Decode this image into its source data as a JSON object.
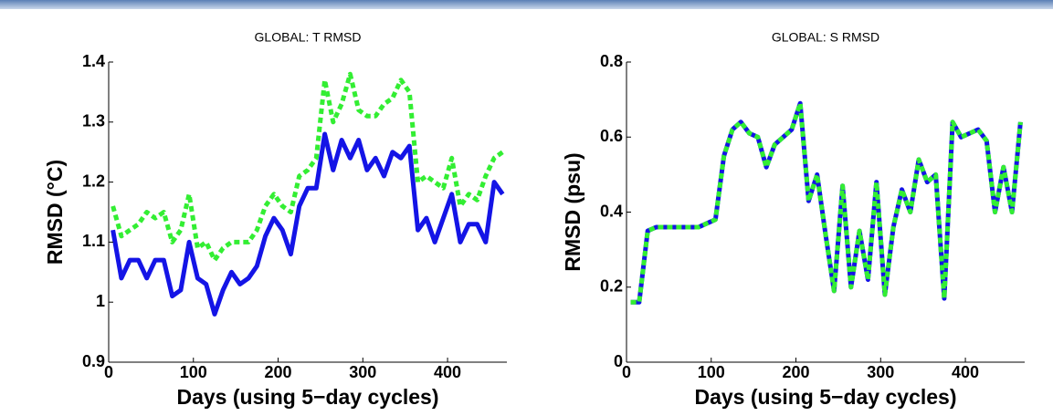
{
  "chart_data": [
    {
      "type": "line",
      "title": "GLOBAL: T RMSD",
      "x_label": "Days (using 5−day cycles)",
      "y_label": "RMSD (°C)",
      "x": [
        5,
        15,
        25,
        35,
        45,
        55,
        65,
        75,
        85,
        95,
        105,
        115,
        125,
        135,
        145,
        155,
        165,
        175,
        185,
        195,
        205,
        215,
        225,
        235,
        245,
        255,
        265,
        275,
        285,
        295,
        305,
        315,
        325,
        335,
        345,
        355,
        365,
        375,
        385,
        395,
        405,
        415,
        425,
        435,
        445,
        455,
        465
      ],
      "series": [
        {
          "color": "#1414e6",
          "line_style": "solid",
          "values": [
            1.12,
            1.04,
            1.07,
            1.07,
            1.04,
            1.07,
            1.07,
            1.01,
            1.02,
            1.1,
            1.04,
            1.03,
            0.98,
            1.02,
            1.05,
            1.03,
            1.04,
            1.06,
            1.11,
            1.14,
            1.12,
            1.08,
            1.16,
            1.19,
            1.19,
            1.28,
            1.22,
            1.27,
            1.24,
            1.27,
            1.22,
            1.24,
            1.21,
            1.25,
            1.24,
            1.26,
            1.12,
            1.14,
            1.1,
            1.14,
            1.18,
            1.1,
            1.13,
            1.13,
            1.1,
            1.2,
            1.18
          ]
        },
        {
          "color": "#33ee33",
          "line_style": "dotted",
          "values": [
            1.16,
            1.11,
            1.12,
            1.13,
            1.15,
            1.14,
            1.15,
            1.1,
            1.12,
            1.18,
            1.09,
            1.1,
            1.07,
            1.09,
            1.1,
            1.1,
            1.1,
            1.12,
            1.16,
            1.18,
            1.16,
            1.15,
            1.21,
            1.22,
            1.24,
            1.37,
            1.3,
            1.33,
            1.38,
            1.32,
            1.31,
            1.31,
            1.33,
            1.34,
            1.37,
            1.35,
            1.2,
            1.21,
            1.2,
            1.19,
            1.24,
            1.16,
            1.18,
            1.17,
            1.21,
            1.24,
            1.25
          ]
        }
      ],
      "xlim": [
        0,
        470
      ],
      "xticks": [
        0,
        100,
        200,
        300,
        400
      ],
      "ylim": [
        0.9,
        1.4
      ],
      "yticks": [
        0.9,
        1,
        1.1,
        1.2,
        1.3,
        1.4
      ]
    },
    {
      "type": "line",
      "title": "GLOBAL: S RMSD",
      "x_label": "Days (using 5−day cycles)",
      "y_label": "RMSD (psu)",
      "x": [
        5,
        15,
        25,
        35,
        45,
        55,
        65,
        75,
        85,
        95,
        105,
        115,
        125,
        135,
        145,
        155,
        165,
        175,
        185,
        195,
        205,
        215,
        225,
        235,
        245,
        255,
        265,
        275,
        285,
        295,
        305,
        315,
        325,
        335,
        345,
        355,
        365,
        375,
        385,
        395,
        405,
        415,
        425,
        435,
        445,
        455,
        465
      ],
      "series": [
        {
          "color": "#1414e6",
          "line_style": "solid",
          "values": [
            0.16,
            0.16,
            0.35,
            0.36,
            0.36,
            0.36,
            0.36,
            0.36,
            0.36,
            0.37,
            0.38,
            0.55,
            0.62,
            0.64,
            0.61,
            0.6,
            0.52,
            0.58,
            0.6,
            0.62,
            0.69,
            0.43,
            0.5,
            0.34,
            0.19,
            0.47,
            0.2,
            0.35,
            0.22,
            0.48,
            0.18,
            0.36,
            0.46,
            0.4,
            0.54,
            0.48,
            0.5,
            0.17,
            0.64,
            0.6,
            0.61,
            0.62,
            0.59,
            0.4,
            0.52,
            0.4,
            0.64
          ]
        },
        {
          "color": "#33ee33",
          "line_style": "dotted",
          "values": [
            0.16,
            0.16,
            0.35,
            0.36,
            0.36,
            0.36,
            0.36,
            0.36,
            0.36,
            0.37,
            0.38,
            0.55,
            0.62,
            0.64,
            0.61,
            0.6,
            0.52,
            0.58,
            0.6,
            0.62,
            0.69,
            0.43,
            0.5,
            0.34,
            0.19,
            0.47,
            0.2,
            0.35,
            0.22,
            0.48,
            0.18,
            0.36,
            0.46,
            0.4,
            0.54,
            0.48,
            0.5,
            0.17,
            0.64,
            0.6,
            0.61,
            0.62,
            0.59,
            0.4,
            0.52,
            0.4,
            0.64
          ]
        }
      ],
      "xlim": [
        0,
        470
      ],
      "xticks": [
        0,
        100,
        200,
        300,
        400
      ],
      "ylim": [
        0,
        0.8
      ],
      "yticks": [
        0,
        0.2,
        0.4,
        0.6,
        0.8
      ]
    }
  ]
}
